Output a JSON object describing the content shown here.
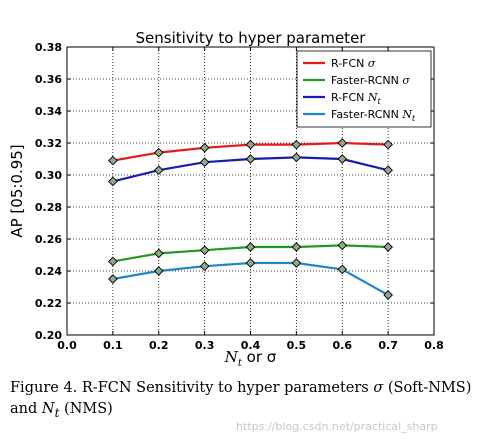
{
  "chart_data": {
    "type": "line",
    "title": "Sensitivity to hyper parameter",
    "xlabel_base": "N",
    "xlabel_sub": "t",
    "xlabel_rest": " or σ",
    "ylabel": "AP [05:0.95]",
    "xlim": [
      0.0,
      0.8
    ],
    "ylim": [
      0.2,
      0.38
    ],
    "x_ticks": [
      "0.0",
      "0.1",
      "0.2",
      "0.3",
      "0.4",
      "0.5",
      "0.6",
      "0.7",
      "0.8"
    ],
    "y_ticks": [
      "0.20",
      "0.22",
      "0.24",
      "0.26",
      "0.28",
      "0.30",
      "0.32",
      "0.34",
      "0.36",
      "0.38"
    ],
    "grid": true,
    "legend_position": "top-right",
    "x": [
      0.1,
      0.2,
      0.3,
      0.4,
      0.5,
      0.6,
      0.7
    ],
    "series": [
      {
        "name": "R-FCN",
        "symbol": "σ",
        "color": "#e41a1c",
        "values": [
          0.309,
          0.314,
          0.317,
          0.319,
          0.319,
          0.32,
          0.319
        ]
      },
      {
        "name": "Faster-RCNN",
        "symbol": "σ",
        "color": "#1f9a1f",
        "values": [
          0.246,
          0.251,
          0.253,
          0.255,
          0.255,
          0.256,
          0.255
        ]
      },
      {
        "name": "R-FCN",
        "symbol": "N",
        "symbol_sub": "t",
        "color": "#1a1ab5",
        "values": [
          0.296,
          0.303,
          0.308,
          0.31,
          0.311,
          0.31,
          0.303
        ]
      },
      {
        "name": "Faster-RCNN",
        "symbol": "N",
        "symbol_sub": "t",
        "color": "#1f86c8",
        "values": [
          0.235,
          0.24,
          0.243,
          0.245,
          0.245,
          0.241,
          0.225
        ]
      }
    ],
    "marker_color": "#8fa98a"
  },
  "caption": {
    "prefix": "Figure 4. R-FCN Sensitivity to hyper parameters ",
    "sigma": "σ",
    "middle": " (Soft-NMS) and ",
    "nt_base": "N",
    "nt_sub": "t",
    "suffix": " (NMS)"
  },
  "watermark": "https://blog.csdn.net/practical_sharp"
}
